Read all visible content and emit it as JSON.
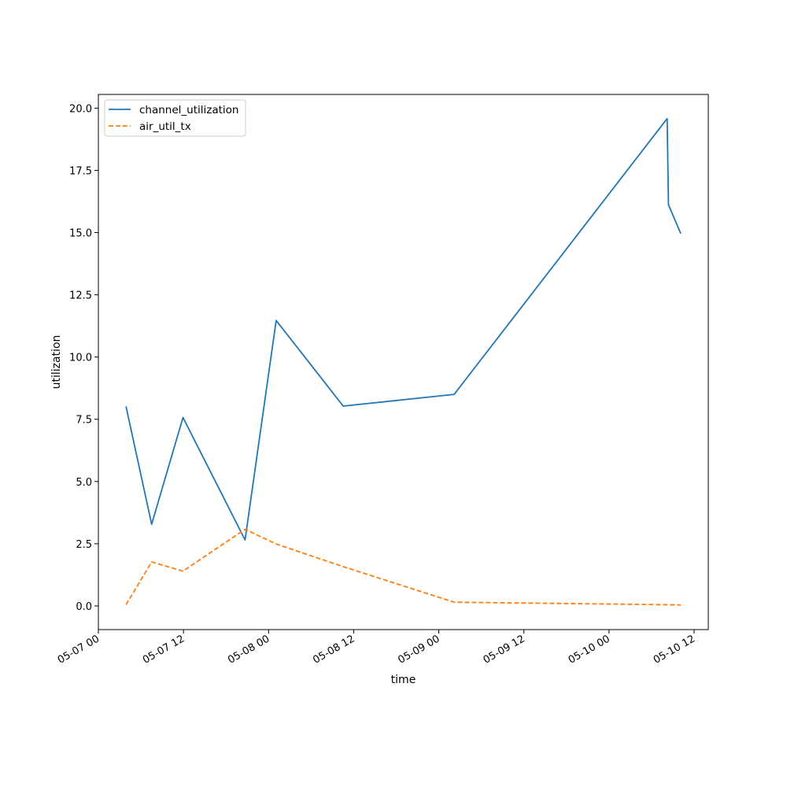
{
  "chart_data": {
    "type": "line",
    "xlabel": "time",
    "ylabel": "utilization",
    "x_axis_type": "datetime",
    "xlim": [
      "05-07 00:00",
      "05-10 14:00"
    ],
    "ylim": [
      -0.95,
      20.55
    ],
    "x_ticks": [
      {
        "value": "05-07 00:00",
        "label": "05-07 00"
      },
      {
        "value": "05-07 12:00",
        "label": "05-07 12"
      },
      {
        "value": "05-08 00:00",
        "label": "05-08 00"
      },
      {
        "value": "05-08 12:00",
        "label": "05-08 12"
      },
      {
        "value": "05-09 00:00",
        "label": "05-09 00"
      },
      {
        "value": "05-09 12:00",
        "label": "05-09 12"
      },
      {
        "value": "05-10 00:00",
        "label": "05-10 00"
      },
      {
        "value": "05-10 12:00",
        "label": "05-10 12"
      }
    ],
    "y_ticks": [
      {
        "value": 0.0,
        "label": "0.0"
      },
      {
        "value": 2.5,
        "label": "2.5"
      },
      {
        "value": 5.0,
        "label": "5.0"
      },
      {
        "value": 7.5,
        "label": "7.5"
      },
      {
        "value": 10.0,
        "label": "10.0"
      },
      {
        "value": 12.5,
        "label": "12.5"
      },
      {
        "value": 15.0,
        "label": "15.0"
      },
      {
        "value": 17.5,
        "label": "17.5"
      },
      {
        "value": 20.0,
        "label": "20.0"
      }
    ],
    "grid": false,
    "legend_position": "upper-left",
    "series": [
      {
        "name": "channel_utilization",
        "color": "#1f77b4",
        "dash": "solid",
        "x": [
          "05-07 03:54",
          "05-07 07:31",
          "05-07 11:56",
          "05-07 20:41",
          "05-08 01:04",
          "05-08 10:31",
          "05-09 02:10",
          "05-10 08:12",
          "05-10 08:23",
          "05-10 10:07"
        ],
        "y": [
          8.02,
          3.28,
          7.57,
          2.65,
          11.47,
          8.03,
          8.5,
          19.58,
          16.12,
          14.96
        ]
      },
      {
        "name": "air_util_tx",
        "color": "#ff7f0e",
        "dash": "dashed",
        "x": [
          "05-07 03:54",
          "05-07 07:31",
          "05-07 11:56",
          "05-07 20:41",
          "05-08 01:04",
          "05-08 10:31",
          "05-09 02:10",
          "05-10 08:12",
          "05-10 08:23",
          "05-10 10:07"
        ],
        "y": [
          0.05,
          1.77,
          1.4,
          3.08,
          2.49,
          1.58,
          0.15,
          0.05,
          0.05,
          0.04
        ]
      }
    ]
  }
}
